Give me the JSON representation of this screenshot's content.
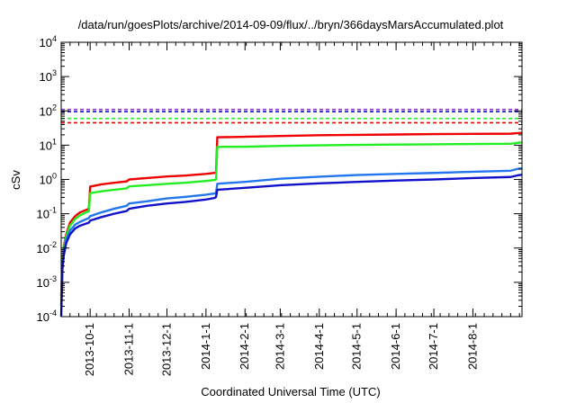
{
  "chart_data": {
    "type": "line",
    "title": "/data/run/goesPlots/archive/2014-09-09/flux/../bryn/366daysMarsAccumulated.plot",
    "xlabel": "Coordinated Universal Time (UTC)",
    "ylabel": "cSv",
    "xlim": [
      "2013-09-08",
      "2014-09-09"
    ],
    "ylim": [
      0.0001,
      10000
    ],
    "y_scale": "log",
    "y_ticks": [
      {
        "value": 0.0001,
        "base": "10",
        "exp": "-4"
      },
      {
        "value": 0.001,
        "base": "10",
        "exp": "-3"
      },
      {
        "value": 0.01,
        "base": "10",
        "exp": "-2"
      },
      {
        "value": 0.1,
        "base": "10",
        "exp": "-1"
      },
      {
        "value": 1,
        "base": "10",
        "exp": "0"
      },
      {
        "value": 10,
        "base": "10",
        "exp": "1"
      },
      {
        "value": 100,
        "base": "10",
        "exp": "2"
      },
      {
        "value": 1000,
        "base": "10",
        "exp": "3"
      },
      {
        "value": 10000,
        "base": "10",
        "exp": "4"
      }
    ],
    "x_ticks": [
      {
        "date": "2013-10-01",
        "label": "2013-10-1"
      },
      {
        "date": "2013-11-01",
        "label": "2013-11-1"
      },
      {
        "date": "2013-12-01",
        "label": "2013-12-1"
      },
      {
        "date": "2014-01-01",
        "label": "2014-1-1"
      },
      {
        "date": "2014-02-01",
        "label": "2014-2-1"
      },
      {
        "date": "2014-03-01",
        "label": "2014-3-1"
      },
      {
        "date": "2014-04-01",
        "label": "2014-4-1"
      },
      {
        "date": "2014-05-01",
        "label": "2014-5-1"
      },
      {
        "date": "2014-06-01",
        "label": "2014-6-1"
      },
      {
        "date": "2014-07-01",
        "label": "2014-7-1"
      },
      {
        "date": "2014-08-01",
        "label": "2014-8-1"
      }
    ],
    "grid": false,
    "legend": "none",
    "series": [
      {
        "color": "#ee0000",
        "style": "solid",
        "points": [
          [
            "2013-09-08",
            0.0004
          ],
          [
            "2013-09-09",
            0.004
          ],
          [
            "2013-09-10",
            0.011
          ],
          [
            "2013-09-12",
            0.025
          ],
          [
            "2013-09-15",
            0.055
          ],
          [
            "2013-09-19",
            0.085
          ],
          [
            "2013-09-23",
            0.11
          ],
          [
            "2013-09-30",
            0.14
          ],
          [
            "2013-10-01",
            0.62
          ],
          [
            "2013-10-10",
            0.72
          ],
          [
            "2013-10-20",
            0.8
          ],
          [
            "2013-10-30",
            0.88
          ],
          [
            "2013-11-01",
            1.0
          ],
          [
            "2013-11-15",
            1.1
          ],
          [
            "2013-12-01",
            1.22
          ],
          [
            "2013-12-15",
            1.3
          ],
          [
            "2014-01-01",
            1.45
          ],
          [
            "2014-01-08",
            1.55
          ],
          [
            "2014-01-09",
            1.6
          ],
          [
            "2014-01-10",
            17.0
          ],
          [
            "2014-02-01",
            17.5
          ],
          [
            "2014-03-01",
            18.5
          ],
          [
            "2014-04-01",
            19.5
          ],
          [
            "2014-05-01",
            20.0
          ],
          [
            "2014-06-01",
            20.5
          ],
          [
            "2014-07-01",
            21.0
          ],
          [
            "2014-08-01",
            21.3
          ],
          [
            "2014-08-31",
            21.6
          ],
          [
            "2014-09-06",
            22.5
          ],
          [
            "2014-09-09",
            22.8
          ]
        ]
      },
      {
        "color": "#22ee22",
        "style": "solid",
        "points": [
          [
            "2013-09-08",
            0.0004
          ],
          [
            "2013-09-09",
            0.004
          ],
          [
            "2013-09-10",
            0.01
          ],
          [
            "2013-09-12",
            0.022
          ],
          [
            "2013-09-15",
            0.045
          ],
          [
            "2013-09-19",
            0.07
          ],
          [
            "2013-09-23",
            0.09
          ],
          [
            "2013-09-30",
            0.12
          ],
          [
            "2013-10-01",
            0.4
          ],
          [
            "2013-10-10",
            0.45
          ],
          [
            "2013-10-20",
            0.5
          ],
          [
            "2013-10-30",
            0.55
          ],
          [
            "2013-11-01",
            0.63
          ],
          [
            "2013-11-15",
            0.68
          ],
          [
            "2013-12-01",
            0.75
          ],
          [
            "2013-12-15",
            0.8
          ],
          [
            "2014-01-01",
            0.9
          ],
          [
            "2014-01-08",
            0.97
          ],
          [
            "2014-01-09",
            1.0
          ],
          [
            "2014-01-10",
            8.9
          ],
          [
            "2014-02-01",
            9.0
          ],
          [
            "2014-03-01",
            9.5
          ],
          [
            "2014-04-01",
            9.9
          ],
          [
            "2014-05-01",
            10.2
          ],
          [
            "2014-06-01",
            10.4
          ],
          [
            "2014-07-01",
            10.6
          ],
          [
            "2014-08-01",
            10.8
          ],
          [
            "2014-08-31",
            11.0
          ],
          [
            "2014-09-06",
            11.8
          ],
          [
            "2014-09-09",
            12.0
          ]
        ]
      },
      {
        "color": "#2277ee",
        "style": "solid",
        "points": [
          [
            "2013-09-08",
            0.0002
          ],
          [
            "2013-09-09",
            0.003
          ],
          [
            "2013-09-10",
            0.008
          ],
          [
            "2013-09-12",
            0.018
          ],
          [
            "2013-09-15",
            0.032
          ],
          [
            "2013-09-19",
            0.048
          ],
          [
            "2013-09-23",
            0.058
          ],
          [
            "2013-09-30",
            0.075
          ],
          [
            "2013-10-01",
            0.085
          ],
          [
            "2013-10-10",
            0.11
          ],
          [
            "2013-10-20",
            0.14
          ],
          [
            "2013-10-30",
            0.17
          ],
          [
            "2013-11-01",
            0.2
          ],
          [
            "2013-11-15",
            0.23
          ],
          [
            "2013-12-01",
            0.28
          ],
          [
            "2013-12-15",
            0.31
          ],
          [
            "2014-01-01",
            0.36
          ],
          [
            "2014-01-08",
            0.39
          ],
          [
            "2014-01-09",
            0.42
          ],
          [
            "2014-01-10",
            0.75
          ],
          [
            "2014-02-01",
            0.85
          ],
          [
            "2014-03-01",
            1.05
          ],
          [
            "2014-04-01",
            1.2
          ],
          [
            "2014-05-01",
            1.35
          ],
          [
            "2014-06-01",
            1.45
          ],
          [
            "2014-07-01",
            1.55
          ],
          [
            "2014-08-01",
            1.68
          ],
          [
            "2014-08-31",
            1.8
          ],
          [
            "2014-09-06",
            2.05
          ],
          [
            "2014-09-09",
            2.1
          ]
        ]
      },
      {
        "color": "#1111cc",
        "style": "solid",
        "points": [
          [
            "2013-09-08",
            0.0001
          ],
          [
            "2013-09-09",
            0.0025
          ],
          [
            "2013-09-10",
            0.006
          ],
          [
            "2013-09-12",
            0.014
          ],
          [
            "2013-09-15",
            0.025
          ],
          [
            "2013-09-19",
            0.037
          ],
          [
            "2013-09-23",
            0.045
          ],
          [
            "2013-09-30",
            0.055
          ],
          [
            "2013-10-01",
            0.063
          ],
          [
            "2013-10-10",
            0.08
          ],
          [
            "2013-10-20",
            0.1
          ],
          [
            "2013-10-30",
            0.12
          ],
          [
            "2013-11-01",
            0.14
          ],
          [
            "2013-11-15",
            0.17
          ],
          [
            "2013-12-01",
            0.2
          ],
          [
            "2013-12-15",
            0.22
          ],
          [
            "2014-01-01",
            0.26
          ],
          [
            "2014-01-08",
            0.29
          ],
          [
            "2014-01-09",
            0.31
          ],
          [
            "2014-01-10",
            0.5
          ],
          [
            "2014-02-01",
            0.57
          ],
          [
            "2014-03-01",
            0.68
          ],
          [
            "2014-04-01",
            0.77
          ],
          [
            "2014-05-01",
            0.85
          ],
          [
            "2014-06-01",
            0.93
          ],
          [
            "2014-07-01",
            1.0
          ],
          [
            "2014-08-01",
            1.1
          ],
          [
            "2014-08-31",
            1.18
          ],
          [
            "2014-09-06",
            1.33
          ],
          [
            "2014-09-09",
            1.38
          ]
        ]
      }
    ],
    "reference_lines": [
      {
        "value": 110,
        "color": "#9933cc",
        "style": "dashed"
      },
      {
        "value": 95,
        "color": "#1111cc",
        "style": "dashed"
      },
      {
        "value": 60,
        "color": "#22ee22",
        "style": "dashed"
      },
      {
        "value": 45,
        "color": "#ee0000",
        "style": "dashed"
      }
    ]
  }
}
